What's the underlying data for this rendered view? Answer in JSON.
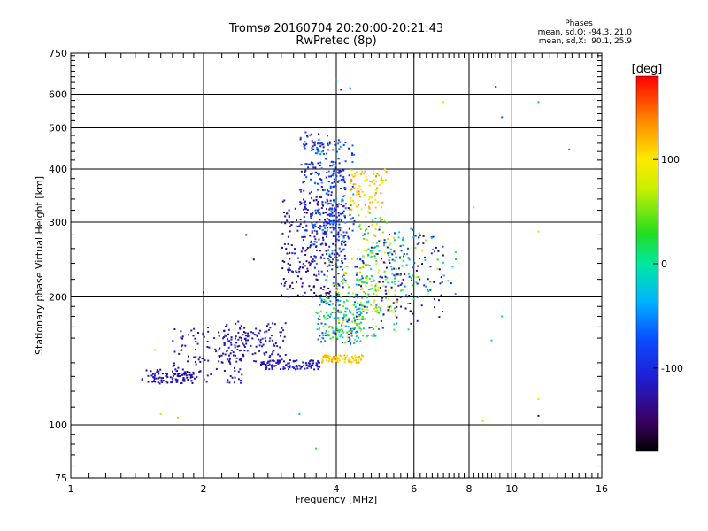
{
  "chart_data": {
    "type": "scatter",
    "title": "Tromsø 20160704 20:20:00-20:21:43",
    "subtitle": "RwPretec (8p)",
    "xlabel": "Frequency [MHz]",
    "ylabel": "Stationary phase Virtual Height [km]",
    "x_scale": "log",
    "y_scale": "log",
    "xlim": [
      1,
      16
    ],
    "ylim": [
      75,
      750
    ],
    "x_ticks": [
      1,
      2,
      4,
      6,
      8,
      10,
      16
    ],
    "y_ticks": [
      75,
      100,
      200,
      300,
      400,
      500,
      600,
      750
    ],
    "grid": true,
    "colorbar": {
      "label": "[deg]",
      "range": [
        -180,
        180
      ],
      "ticks": [
        100,
        0,
        -100
      ]
    },
    "phases_legend": {
      "header": "Phases",
      "o_line": "mean, sd,O: -94.3, 21.0",
      "x_line": "mean, sd,X:  90.1, 25.9"
    },
    "point_clusters": [
      {
        "x": [
          1.45,
          1.9
        ],
        "y": [
          125,
          135
        ],
        "phase": [
          -140,
          -110
        ],
        "n": 90
      },
      {
        "x": [
          1.7,
          2.5
        ],
        "y": [
          125,
          170
        ],
        "phase": [
          -140,
          -100
        ],
        "n": 130
      },
      {
        "x": [
          2.2,
          3.1
        ],
        "y": [
          140,
          175
        ],
        "phase": [
          -140,
          -90
        ],
        "n": 120
      },
      {
        "x": [
          2.7,
          3.7
        ],
        "y": [
          135,
          142
        ],
        "phase": [
          -130,
          -100
        ],
        "n": 110
      },
      {
        "x": [
          3.0,
          4.2
        ],
        "y": [
          200,
          340
        ],
        "phase": [
          -150,
          -100
        ],
        "n": 260
      },
      {
        "x": [
          3.3,
          4.2
        ],
        "y": [
          230,
          420
        ],
        "phase": [
          -130,
          -60
        ],
        "n": 180
      },
      {
        "x": [
          3.5,
          4.4
        ],
        "y": [
          270,
          470
        ],
        "phase": [
          -120,
          -40
        ],
        "n": 160
      },
      {
        "x": [
          3.3,
          3.9
        ],
        "y": [
          440,
          490
        ],
        "phase": [
          -140,
          -60
        ],
        "n": 30
      },
      {
        "x": [
          3.6,
          4.6
        ],
        "y": [
          155,
          200
        ],
        "phase": [
          -120,
          60
        ],
        "n": 160
      },
      {
        "x": [
          3.8,
          5.0
        ],
        "y": [
          160,
          260
        ],
        "phase": [
          -60,
          120
        ],
        "n": 140
      },
      {
        "x": [
          4.3,
          5.2
        ],
        "y": [
          320,
          400
        ],
        "phase": [
          90,
          140
        ],
        "n": 80
      },
      {
        "x": [
          4.5,
          5.5
        ],
        "y": [
          180,
          320
        ],
        "phase": [
          -30,
          130
        ],
        "n": 120
      },
      {
        "x": [
          3.7,
          4.6
        ],
        "y": [
          140,
          146
        ],
        "phase": [
          90,
          130
        ],
        "n": 70
      },
      {
        "x": [
          4.4,
          6.2
        ],
        "y": [
          165,
          300
        ],
        "phase": [
          -150,
          40
        ],
        "n": 110
      },
      {
        "x": [
          5.0,
          7.0
        ],
        "y": [
          175,
          280
        ],
        "phase": [
          -160,
          -100
        ],
        "n": 70
      },
      {
        "x": [
          5.5,
          7.5
        ],
        "y": [
          200,
          280
        ],
        "phase": [
          -100,
          80
        ],
        "n": 50
      }
    ],
    "isolated_points": [
      {
        "x": 4.1,
        "y": 615,
        "phase": -110
      },
      {
        "x": 4.3,
        "y": 620,
        "phase": -60
      },
      {
        "x": 9.2,
        "y": 625,
        "phase": -120
      },
      {
        "x": 11.5,
        "y": 575,
        "phase": -40
      },
      {
        "x": 7.0,
        "y": 575,
        "phase": 110
      },
      {
        "x": 9.5,
        "y": 530,
        "phase": -70
      },
      {
        "x": 13.5,
        "y": 445,
        "phase": 160
      },
      {
        "x": 8.2,
        "y": 325,
        "phase": 110
      },
      {
        "x": 11.5,
        "y": 285,
        "phase": 110
      },
      {
        "x": 9.5,
        "y": 180,
        "phase": -30
      },
      {
        "x": 9.0,
        "y": 158,
        "phase": -30
      },
      {
        "x": 11.5,
        "y": 115,
        "phase": 110
      },
      {
        "x": 11.5,
        "y": 105,
        "phase": -140
      },
      {
        "x": 8.6,
        "y": 102,
        "phase": 110
      },
      {
        "x": 3.3,
        "y": 106,
        "phase": -30
      },
      {
        "x": 3.6,
        "y": 88,
        "phase": 30
      },
      {
        "x": 1.6,
        "y": 106,
        "phase": 110
      },
      {
        "x": 1.75,
        "y": 104,
        "phase": 120
      },
      {
        "x": 1.55,
        "y": 150,
        "phase": 110
      },
      {
        "x": 2.5,
        "y": 280,
        "phase": -130
      },
      {
        "x": 2.6,
        "y": 245,
        "phase": -140
      },
      {
        "x": 2.0,
        "y": 205,
        "phase": -150
      },
      {
        "x": 4.0,
        "y": 650,
        "phase": -20
      }
    ]
  }
}
